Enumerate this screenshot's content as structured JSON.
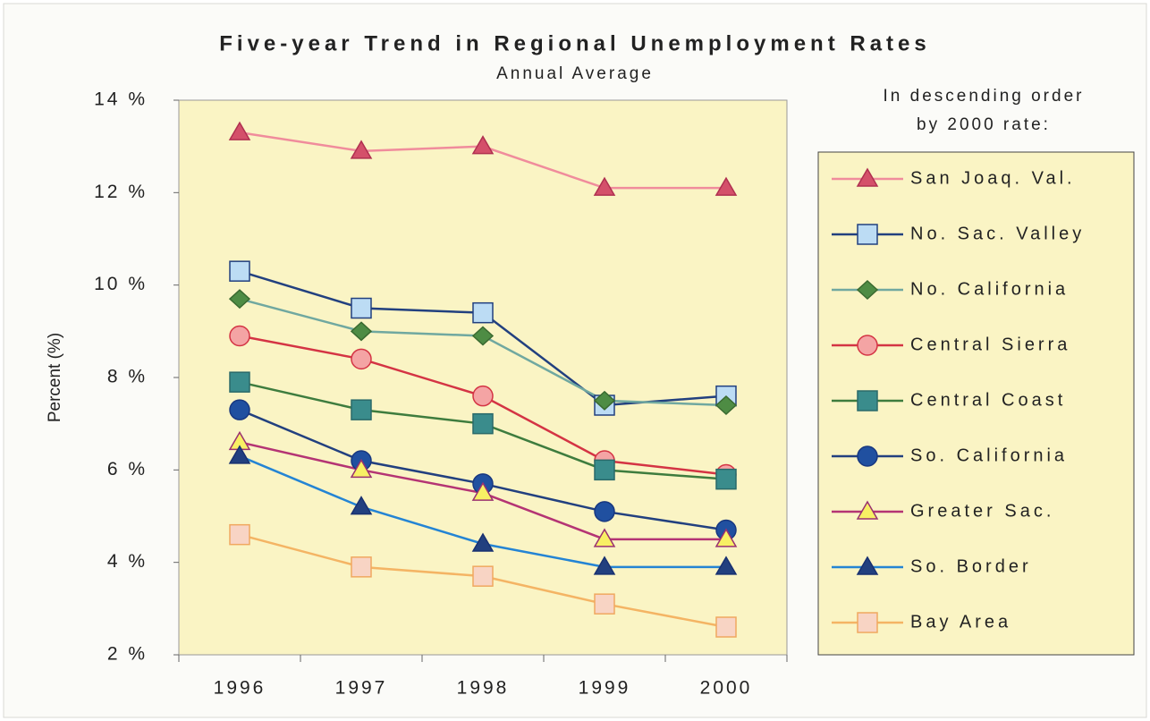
{
  "chart_data": {
    "type": "line",
    "title": "Five-year Trend in Regional Unemployment Rates",
    "subtitle": "Annual Average",
    "y_label": "Percent (%)",
    "legend_title": [
      "In descending order",
      "by 2000 rate:"
    ],
    "categories": [
      "1996",
      "1997",
      "1998",
      "1999",
      "2000"
    ],
    "ylim": [
      2,
      14
    ],
    "yticks": [
      {
        "value": 2,
        "label": "2 %"
      },
      {
        "value": 4,
        "label": "4 %"
      },
      {
        "value": 6,
        "label": "6 %"
      },
      {
        "value": 8,
        "label": "8 %"
      },
      {
        "value": 10,
        "label": "10 %"
      },
      {
        "value": 12,
        "label": "12 %"
      },
      {
        "value": 14,
        "label": "14 %"
      }
    ],
    "legend": "right",
    "series": [
      {
        "name": "San Joaq. Val.",
        "color": "#f08c9c",
        "marker": "triangle",
        "marker_fill": "#d4506a",
        "marker_stroke": "#b03050",
        "values": [
          13.3,
          12.9,
          13.0,
          12.1,
          12.1
        ]
      },
      {
        "name": "No. Sac. Valley",
        "color": "#22407f",
        "marker": "square",
        "marker_fill": "#bcdcf4",
        "marker_stroke": "#22407f",
        "values": [
          10.3,
          9.5,
          9.4,
          7.4,
          7.6
        ]
      },
      {
        "name": "No. California",
        "color": "#70a8a0",
        "marker": "diamond",
        "marker_fill": "#4e8c44",
        "marker_stroke": "#3a6a30",
        "values": [
          9.7,
          9.0,
          8.9,
          7.5,
          7.4
        ]
      },
      {
        "name": "Central Sierra",
        "color": "#d43444",
        "marker": "circle",
        "marker_fill": "#f4a4a4",
        "marker_stroke": "#d43444",
        "values": [
          8.9,
          8.4,
          7.6,
          6.2,
          5.9
        ]
      },
      {
        "name": "Central Coast",
        "color": "#3e7c3e",
        "marker": "square",
        "marker_fill": "#3a8c8c",
        "marker_stroke": "#2a6a6a",
        "values": [
          7.9,
          7.3,
          7.0,
          6.0,
          5.8
        ]
      },
      {
        "name": "So. California",
        "color": "#22407f",
        "marker": "circle",
        "marker_fill": "#2050a0",
        "marker_stroke": "#183880",
        "values": [
          7.3,
          6.2,
          5.7,
          5.1,
          4.7
        ]
      },
      {
        "name": "Greater Sac.",
        "color": "#b43474",
        "marker": "triangle",
        "marker_fill": "#f8f064",
        "marker_stroke": "#9a3070",
        "values": [
          6.6,
          6.0,
          5.5,
          4.5,
          4.5
        ]
      },
      {
        "name": "So. Border",
        "color": "#2484d4",
        "marker": "triangle",
        "marker_fill": "#22407f",
        "marker_stroke": "#183070",
        "values": [
          6.3,
          5.2,
          4.4,
          3.9,
          3.9
        ]
      },
      {
        "name": "Bay Area",
        "color": "#f4b464",
        "marker": "square",
        "marker_fill": "#f8d4c4",
        "marker_stroke": "#f0a860",
        "values": [
          4.6,
          3.9,
          3.7,
          3.1,
          2.6
        ]
      }
    ]
  }
}
